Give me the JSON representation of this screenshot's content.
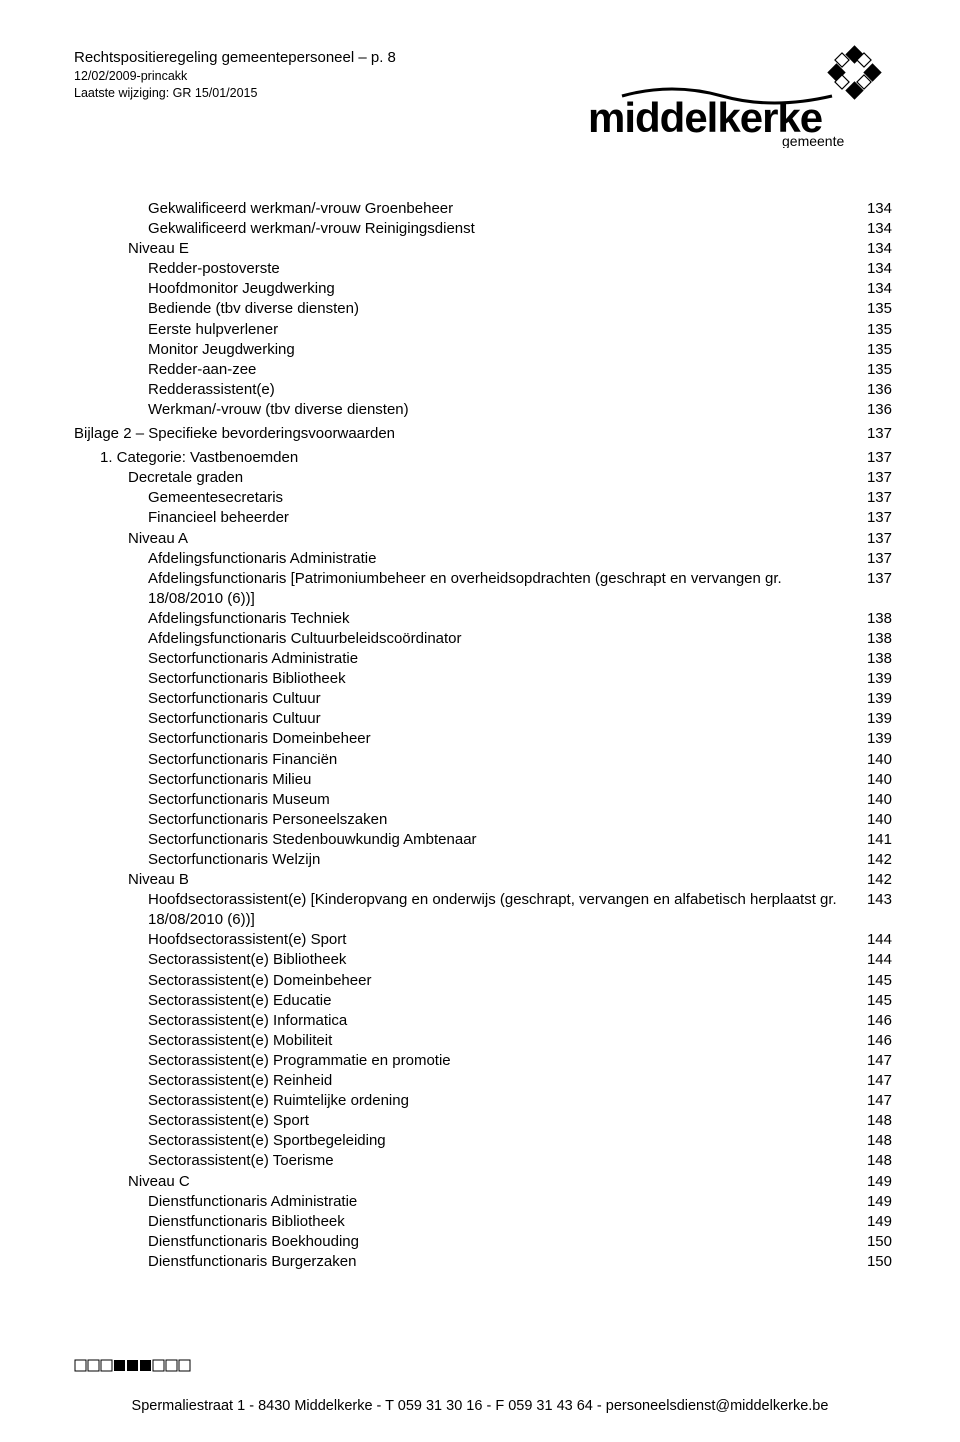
{
  "header": {
    "title": "Rechtspositieregeling gemeentepersoneel – p. 8",
    "subline1": "12/02/2009-princakk",
    "subline2": "Laatste wijziging: GR 15/01/2015"
  },
  "logo": {
    "brand_main": "middelkerke",
    "brand_sub": "gemeente",
    "color": "#000000"
  },
  "toc": {
    "items": [
      {
        "label": "Gekwalificeerd werkman/-vrouw Groenbeheer",
        "page": "134",
        "indent": 2
      },
      {
        "label": "Gekwalificeerd werkman/-vrouw Reinigingsdienst",
        "page": "134",
        "indent": 2
      },
      {
        "label": "Niveau E",
        "page": "134",
        "indent": 1
      },
      {
        "label": "Redder-postoverste",
        "page": "134",
        "indent": 2
      },
      {
        "label": "Hoofdmonitor Jeugdwerking",
        "page": "134",
        "indent": 2
      },
      {
        "label": "Bediende (tbv diverse diensten)",
        "page": "135",
        "indent": 2
      },
      {
        "label": "Eerste hulpverlener",
        "page": "135",
        "indent": 2
      },
      {
        "label": "Monitor Jeugdwerking",
        "page": "135",
        "indent": 2
      },
      {
        "label": "Redder-aan-zee",
        "page": "135",
        "indent": 2
      },
      {
        "label": "Redderassistent(e)",
        "page": "136",
        "indent": 2
      },
      {
        "label": "Werkman/-vrouw (tbv diverse diensten)",
        "page": "136",
        "indent": 2
      }
    ],
    "bilage": {
      "label": "Bijlage 2 – Specifieke bevorderingsvoorwaarden",
      "page": "137"
    },
    "category": {
      "label": "1. Categorie: Vastbenoemden",
      "page": "137"
    },
    "items2": [
      {
        "label": "Decretale graden",
        "page": "137",
        "indent": 1
      },
      {
        "label": "Gemeentesecretaris",
        "page": "137",
        "indent": 2
      },
      {
        "label": "Financieel beheerder",
        "page": "137",
        "indent": 2
      },
      {
        "label": "Niveau A",
        "page": "137",
        "indent": 1
      },
      {
        "label": "Afdelingsfunctionaris Administratie",
        "page": "137",
        "indent": 2
      },
      {
        "label": "Afdelingsfunctionaris [Patrimoniumbeheer en overheidsopdrachten (geschrapt en vervangen gr. 18/08/2010 (6))]",
        "page": "137",
        "indent": 2
      },
      {
        "label": "Afdelingsfunctionaris Techniek",
        "page": "138",
        "indent": 2
      },
      {
        "label": "Afdelingsfunctionaris Cultuurbeleidscoördinator",
        "page": "138",
        "indent": 2
      },
      {
        "label": "Sectorfunctionaris Administratie",
        "page": "138",
        "indent": 2
      },
      {
        "label": "Sectorfunctionaris Bibliotheek",
        "page": "139",
        "indent": 2
      },
      {
        "label": "Sectorfunctionaris Cultuur",
        "page": "139",
        "indent": 2
      },
      {
        "label": "Sectorfunctionaris Cultuur",
        "page": "139",
        "indent": 2
      },
      {
        "label": "Sectorfunctionaris Domeinbeheer",
        "page": "139",
        "indent": 2
      },
      {
        "label": "Sectorfunctionaris Financiën",
        "page": "140",
        "indent": 2
      },
      {
        "label": "Sectorfunctionaris Milieu",
        "page": "140",
        "indent": 2
      },
      {
        "label": "Sectorfunctionaris Museum",
        "page": "140",
        "indent": 2
      },
      {
        "label": "Sectorfunctionaris Personeelszaken",
        "page": "140",
        "indent": 2
      },
      {
        "label": "Sectorfunctionaris Stedenbouwkundig Ambtenaar",
        "page": "141",
        "indent": 2
      },
      {
        "label": "Sectorfunctionaris Welzijn",
        "page": "142",
        "indent": 2
      },
      {
        "label": "Niveau B",
        "page": "142",
        "indent": 1
      },
      {
        "label": "Hoofdsectorassistent(e) [Kinderopvang en onderwijs (geschrapt, vervangen en alfabetisch herplaatst gr. 18/08/2010 (6))]",
        "page": "143",
        "indent": 2
      },
      {
        "label": "Hoofdsectorassistent(e) Sport",
        "page": "144",
        "indent": 2
      },
      {
        "label": "Sectorassistent(e) Bibliotheek",
        "page": "144",
        "indent": 2
      },
      {
        "label": "Sectorassistent(e) Domeinbeheer",
        "page": "145",
        "indent": 2
      },
      {
        "label": "Sectorassistent(e) Educatie",
        "page": "145",
        "indent": 2
      },
      {
        "label": "Sectorassistent(e) Informatica",
        "page": "146",
        "indent": 2
      },
      {
        "label": "Sectorassistent(e) Mobiliteit",
        "page": "146",
        "indent": 2
      },
      {
        "label": "Sectorassistent(e) Programmatie en promotie",
        "page": "147",
        "indent": 2
      },
      {
        "label": "Sectorassistent(e) Reinheid",
        "page": "147",
        "indent": 2
      },
      {
        "label": "Sectorassistent(e) Ruimtelijke ordening",
        "page": "147",
        "indent": 2
      },
      {
        "label": "Sectorassistent(e) Sport",
        "page": "148",
        "indent": 2
      },
      {
        "label": "Sectorassistent(e) Sportbegeleiding",
        "page": "148",
        "indent": 2
      },
      {
        "label": "Sectorassistent(e) Toerisme",
        "page": "148",
        "indent": 2
      },
      {
        "label": "Niveau C",
        "page": "149",
        "indent": 1
      },
      {
        "label": "Dienstfunctionaris Administratie",
        "page": "149",
        "indent": 2
      },
      {
        "label": "Dienstfunctionaris Bibliotheek",
        "page": "149",
        "indent": 2
      },
      {
        "label": "Dienstfunctionaris Boekhouding",
        "page": "150",
        "indent": 2
      },
      {
        "label": "Dienstfunctionaris Burgerzaken",
        "page": "150",
        "indent": 2
      }
    ]
  },
  "footer": {
    "text": "Spermaliestraat 1 - 8430 Middelkerke - T 059 31 30 16 - F 059 31 43 64 - personeelsdienst@middelkerke.be"
  }
}
